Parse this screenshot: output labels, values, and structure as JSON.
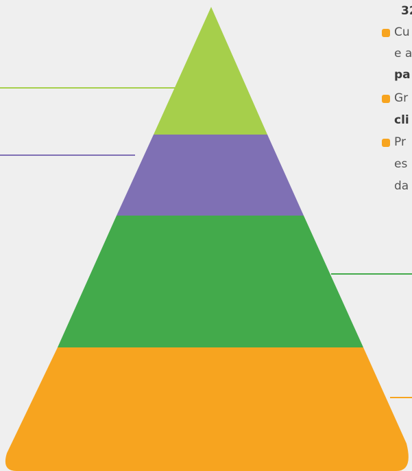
{
  "colors": {
    "background": "#efefef",
    "tier_top": "#a6cf4b",
    "tier_second": "#7f70b4",
    "tier_third": "#43aa4b",
    "tier_bottom": "#f7a41f",
    "bullet": "#f7a41f"
  },
  "text_fragments": {
    "line1": "32",
    "line2": "Cu",
    "line3": "e a",
    "line4": "pa",
    "line5": "Gr",
    "line6": "cli",
    "line7": "Pr",
    "line8": "es",
    "line9": "da"
  },
  "bullet_icon": "rounded-square"
}
